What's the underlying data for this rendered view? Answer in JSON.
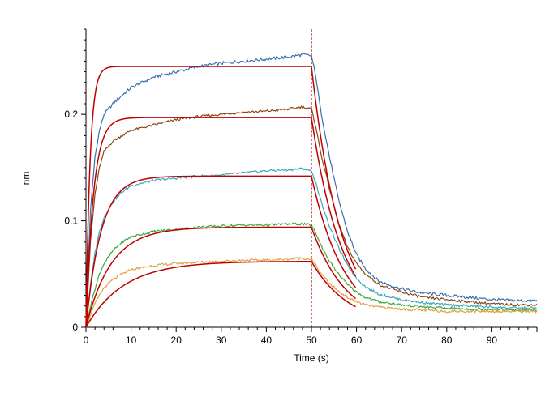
{
  "chart_data": {
    "type": "line",
    "title": "",
    "xlabel": "Time (s)",
    "ylabel": "nm",
    "xlim": [
      0,
      100
    ],
    "ylim": [
      0,
      0.28
    ],
    "x_ticks": [
      0,
      10,
      20,
      30,
      40,
      50,
      60,
      70,
      80,
      90
    ],
    "x_tick_labels": [
      "0",
      "10",
      "20",
      "30",
      "40",
      "50",
      "60",
      "70",
      "80",
      "90"
    ],
    "y_ticks": [
      0,
      0.1,
      0.2
    ],
    "y_tick_labels": [
      "0",
      "0.1",
      "0.2"
    ],
    "grid": false,
    "legend": "none",
    "dissociation_marker": {
      "x": 50,
      "color": "#b22222",
      "style": "dashed"
    },
    "series": [
      {
        "color": "#3a6fb0",
        "x": [
          0,
          0.5,
          1,
          2,
          3,
          4,
          6,
          8,
          10,
          15,
          20,
          25,
          30,
          35,
          40,
          45,
          48,
          50,
          51,
          52,
          54,
          56,
          58,
          60,
          62,
          65,
          70,
          75,
          80,
          85,
          90,
          95,
          100
        ],
        "y": [
          0.0,
          0.06,
          0.11,
          0.16,
          0.185,
          0.2,
          0.21,
          0.218,
          0.225,
          0.235,
          0.24,
          0.245,
          0.248,
          0.25,
          0.252,
          0.254,
          0.256,
          0.255,
          0.235,
          0.205,
          0.16,
          0.12,
          0.09,
          0.068,
          0.055,
          0.043,
          0.036,
          0.032,
          0.03,
          0.028,
          0.026,
          0.025,
          0.025
        ]
      },
      {
        "color": "#8b4513",
        "x": [
          0,
          0.5,
          1,
          2,
          3,
          4,
          6,
          8,
          10,
          15,
          20,
          25,
          30,
          35,
          40,
          45,
          48,
          50,
          51,
          52,
          54,
          56,
          58,
          60,
          62,
          65,
          70,
          75,
          80,
          85,
          90,
          95,
          100
        ],
        "y": [
          0.0,
          0.04,
          0.08,
          0.125,
          0.15,
          0.165,
          0.175,
          0.18,
          0.185,
          0.19,
          0.195,
          0.198,
          0.2,
          0.202,
          0.203,
          0.205,
          0.207,
          0.205,
          0.188,
          0.165,
          0.13,
          0.098,
          0.075,
          0.06,
          0.05,
          0.04,
          0.033,
          0.028,
          0.026,
          0.024,
          0.022,
          0.021,
          0.021
        ]
      },
      {
        "color": "#3aa8b8",
        "x": [
          0,
          0.5,
          1,
          2,
          3,
          4,
          6,
          8,
          10,
          15,
          20,
          25,
          30,
          35,
          40,
          45,
          48,
          50,
          51,
          52,
          54,
          56,
          58,
          60,
          62,
          65,
          70,
          75,
          80,
          85,
          90,
          95,
          100
        ],
        "y": [
          0.0,
          0.02,
          0.04,
          0.07,
          0.09,
          0.103,
          0.118,
          0.127,
          0.133,
          0.138,
          0.14,
          0.142,
          0.143,
          0.145,
          0.147,
          0.148,
          0.149,
          0.147,
          0.135,
          0.12,
          0.095,
          0.075,
          0.058,
          0.046,
          0.038,
          0.031,
          0.026,
          0.023,
          0.021,
          0.02,
          0.019,
          0.018,
          0.018
        ]
      },
      {
        "color": "#3aa83a",
        "x": [
          0,
          0.5,
          1,
          2,
          3,
          4,
          6,
          8,
          10,
          15,
          20,
          25,
          30,
          35,
          40,
          45,
          48,
          50,
          51,
          52,
          54,
          56,
          58,
          60,
          62,
          65,
          70,
          75,
          80,
          85,
          90,
          95,
          100
        ],
        "y": [
          0.0,
          0.01,
          0.02,
          0.036,
          0.05,
          0.06,
          0.072,
          0.08,
          0.085,
          0.09,
          0.092,
          0.094,
          0.095,
          0.096,
          0.096,
          0.097,
          0.097,
          0.096,
          0.088,
          0.078,
          0.062,
          0.05,
          0.04,
          0.033,
          0.028,
          0.024,
          0.021,
          0.019,
          0.018,
          0.017,
          0.017,
          0.016,
          0.016
        ]
      },
      {
        "color": "#e0a040",
        "x": [
          0,
          0.5,
          1,
          2,
          3,
          4,
          6,
          8,
          10,
          15,
          20,
          25,
          30,
          35,
          40,
          45,
          48,
          50,
          51,
          52,
          54,
          56,
          58,
          60,
          62,
          65,
          70,
          75,
          80,
          85,
          90,
          95,
          100
        ],
        "y": [
          0.0,
          0.005,
          0.012,
          0.022,
          0.03,
          0.037,
          0.045,
          0.05,
          0.054,
          0.058,
          0.06,
          0.061,
          0.062,
          0.063,
          0.063,
          0.064,
          0.065,
          0.064,
          0.058,
          0.051,
          0.041,
          0.034,
          0.028,
          0.024,
          0.021,
          0.019,
          0.017,
          0.016,
          0.015,
          0.015,
          0.015,
          0.015,
          0.015
        ]
      }
    ],
    "fit_curves": {
      "color": "#c00000",
      "kon": [
        1.1,
        0.6,
        0.3,
        0.18,
        0.12
      ],
      "koff": [
        0.09,
        0.085,
        0.08,
        0.075,
        0.07
      ],
      "plateaus": [
        0.245,
        0.197,
        0.142,
        0.094,
        0.062
      ],
      "association_end": 50,
      "dissociation_end": 60
    }
  }
}
